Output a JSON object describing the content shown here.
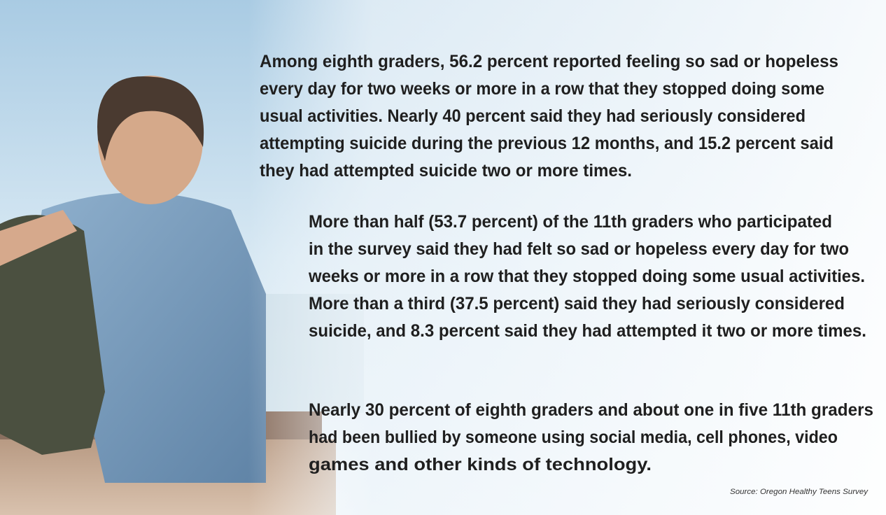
{
  "paragraphs": [
    {
      "lines": [
        "Among eighth graders, 56.2 percent reported feeling so sad or hopeless",
        "every day for two weeks or more in a row that they stopped doing some",
        "usual activities. Nearly 40 percent said they had seriously considered",
        "attempting suicide during the previous 12 months, and 15.2 percent said",
        "they had attempted suicide two or more times."
      ]
    },
    {
      "lines": [
        "More than half (53.7 percent) of the 11th graders who participated",
        "in the survey said they had felt so sad or hopeless every day for two",
        "weeks or more in a row that they stopped doing some usual activities.",
        "More than a third (37.5 percent) said they had seriously considered",
        "suicide, and 8.3 percent said they had attempted it two or more times."
      ]
    },
    {
      "lines": [
        "Nearly 30 percent of eighth graders and about one in five 11th graders",
        "had been bullied by someone using social media, cell phones, video",
        "games and other kinds of technology."
      ]
    }
  ],
  "source": "Source: Oregon Healthy Teens Survey"
}
